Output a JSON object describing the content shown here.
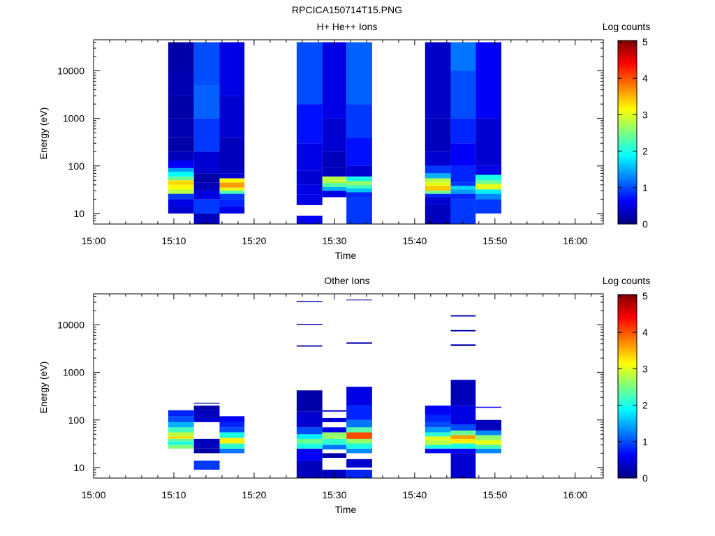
{
  "figure": {
    "title": "RPCICA150714T15.PNG"
  },
  "colors": {
    "background": "#ffffff",
    "axis": "#000000",
    "colormap": [
      "#00007f",
      "#0000ff",
      "#007fff",
      "#00ffff",
      "#7fff7f",
      "#ffff00",
      "#ff7f00",
      "#ff0000",
      "#7f0000"
    ]
  },
  "chart_data": [
    {
      "type": "heatmap",
      "title": "H+ He++ Ions",
      "xlabel": "Time",
      "ylabel": "Energy (eV)",
      "x_ticks": [
        "15:00",
        "15:10",
        "15:20",
        "15:30",
        "15:40",
        "15:50",
        "16:00"
      ],
      "x_range_minutes": [
        0,
        63.5
      ],
      "y_scale": "log",
      "y_range": [
        6,
        45000
      ],
      "y_ticks": [
        "10",
        "100",
        "1000",
        "10000"
      ],
      "colorbar": {
        "label": "Log counts",
        "range": [
          0,
          5
        ],
        "ticks": [
          "0",
          "1",
          "2",
          "3",
          "4",
          "5"
        ]
      },
      "columns": [
        {
          "t0": 9.3,
          "t1": 12.5,
          "emin": 10,
          "emax": 40000,
          "bands": [
            [
              10,
              14,
              0.4
            ],
            [
              14,
              20,
              0.5
            ],
            [
              20,
              26,
              0.9
            ],
            [
              26,
              32,
              2.8
            ],
            [
              32,
              40,
              3.1
            ],
            [
              40,
              50,
              3.3
            ],
            [
              50,
              60,
              2.4
            ],
            [
              60,
              75,
              1.9
            ],
            [
              75,
              90,
              1.4
            ],
            [
              90,
              130,
              0.6
            ],
            [
              130,
              200,
              0.3
            ],
            [
              200,
              400,
              0.2
            ],
            [
              400,
              1000,
              0.25
            ],
            [
              1000,
              3000,
              0.2
            ],
            [
              3000,
              10000,
              0.25
            ],
            [
              10000,
              40000,
              0.2
            ]
          ]
        },
        {
          "t0": 12.5,
          "t1": 15.7,
          "emin": 6,
          "emax": 40000,
          "bands": [
            [
              6,
              10,
              0.3
            ],
            [
              10,
              20,
              0.9
            ],
            [
              20,
              30,
              0.5
            ],
            [
              30,
              45,
              0.3
            ],
            [
              45,
              70,
              0.2
            ],
            [
              70,
              200,
              0.4
            ],
            [
              200,
              1000,
              0.9
            ],
            [
              1000,
              5000,
              1.1
            ],
            [
              5000,
              40000,
              1.0
            ]
          ]
        },
        {
          "t0": 15.7,
          "t1": 18.8,
          "emin": 10,
          "emax": 40000,
          "bands": [
            [
              10,
              14,
              0.5
            ],
            [
              14,
              20,
              0.8
            ],
            [
              20,
              26,
              0.9
            ],
            [
              26,
              30,
              2.2
            ],
            [
              30,
              35,
              3.0
            ],
            [
              35,
              45,
              3.6
            ],
            [
              45,
              55,
              3.1
            ],
            [
              55,
              70,
              0.4
            ],
            [
              70,
              400,
              0.3
            ],
            [
              400,
              3000,
              0.4
            ],
            [
              3000,
              40000,
              0.5
            ]
          ]
        },
        {
          "t0": 25.3,
          "t1": 28.5,
          "emin": 6,
          "emax": 40000,
          "bands": [
            [
              6,
              9,
              0.6
            ],
            [
              15,
              25,
              0.5
            ],
            [
              25,
              40,
              0.5
            ],
            [
              40,
              80,
              0.4
            ],
            [
              80,
              300,
              0.5
            ],
            [
              300,
              2000,
              0.7
            ],
            [
              2000,
              40000,
              1.0
            ]
          ]
        },
        {
          "t0": 28.5,
          "t1": 31.5,
          "emin": 22,
          "emax": 40000,
          "bands": [
            [
              22,
              30,
              0.5
            ],
            [
              30,
              36,
              1.5
            ],
            [
              36,
              44,
              2.3
            ],
            [
              44,
              60,
              2.8
            ],
            [
              60,
              90,
              0.3
            ],
            [
              90,
              200,
              0.3
            ],
            [
              200,
              1000,
              0.4
            ],
            [
              1000,
              40000,
              0.5
            ]
          ]
        },
        {
          "t0": 31.5,
          "t1": 34.7,
          "emin": 6,
          "emax": 40000,
          "bands": [
            [
              6,
              22,
              0.9
            ],
            [
              22,
              28,
              0.8
            ],
            [
              28,
              34,
              1.6
            ],
            [
              34,
              40,
              2.2
            ],
            [
              40,
              48,
              2.6
            ],
            [
              48,
              60,
              2.0
            ],
            [
              60,
              100,
              0.4
            ],
            [
              100,
              400,
              0.7
            ],
            [
              400,
              2000,
              0.9
            ],
            [
              2000,
              40000,
              1.1
            ]
          ]
        },
        {
          "t0": 41.3,
          "t1": 44.5,
          "emin": 6,
          "emax": 40000,
          "bands": [
            [
              6,
              15,
              0.3
            ],
            [
              15,
              22,
              0.4
            ],
            [
              22,
              26,
              0.8
            ],
            [
              26,
              30,
              2.4
            ],
            [
              30,
              38,
              3.4
            ],
            [
              38,
              45,
              3.0
            ],
            [
              45,
              55,
              2.8
            ],
            [
              55,
              70,
              1.5
            ],
            [
              70,
              100,
              0.9
            ],
            [
              100,
              200,
              0.4
            ],
            [
              200,
              1000,
              0.3
            ],
            [
              1000,
              40000,
              0.35
            ]
          ]
        },
        {
          "t0": 44.5,
          "t1": 47.6,
          "emin": 6,
          "emax": 40000,
          "bands": [
            [
              6,
              20,
              0.9
            ],
            [
              20,
              26,
              0.8
            ],
            [
              26,
              32,
              1.4
            ],
            [
              32,
              38,
              1.7
            ],
            [
              38,
              45,
              0.9
            ],
            [
              45,
              100,
              0.8
            ],
            [
              100,
              300,
              0.6
            ],
            [
              300,
              1000,
              0.8
            ],
            [
              1000,
              10000,
              1.0
            ],
            [
              10000,
              40000,
              1.2
            ]
          ]
        },
        {
          "t0": 47.6,
          "t1": 50.8,
          "emin": 10,
          "emax": 40000,
          "bands": [
            [
              10,
              20,
              0.9
            ],
            [
              20,
              26,
              1.3
            ],
            [
              26,
              32,
              1.8
            ],
            [
              32,
              42,
              3.0
            ],
            [
              42,
              50,
              2.4
            ],
            [
              50,
              65,
              2.0
            ],
            [
              65,
              100,
              0.5
            ],
            [
              100,
              1000,
              0.4
            ],
            [
              1000,
              40000,
              0.6
            ]
          ]
        }
      ]
    },
    {
      "type": "heatmap",
      "title": "Other Ions",
      "xlabel": "Time",
      "ylabel": "Energy (eV)",
      "x_ticks": [
        "15:00",
        "15:10",
        "15:20",
        "15:30",
        "15:40",
        "15:50",
        "16:00"
      ],
      "x_range_minutes": [
        0,
        63.5
      ],
      "y_scale": "log",
      "y_range": [
        6,
        45000
      ],
      "y_ticks": [
        "10",
        "100",
        "1000",
        "10000"
      ],
      "colorbar": {
        "label": "Log counts",
        "range": [
          0,
          5
        ],
        "ticks": [
          "0",
          "1",
          "2",
          "3",
          "4",
          "5"
        ]
      },
      "columns": [
        {
          "t0": 9.3,
          "t1": 12.5,
          "emin": 25,
          "emax": 160,
          "bands": [
            [
              25,
              30,
              2.5
            ],
            [
              30,
              35,
              2.0
            ],
            [
              35,
              40,
              2.3
            ],
            [
              40,
              45,
              3.3
            ],
            [
              45,
              55,
              2.8
            ],
            [
              55,
              70,
              2.2
            ],
            [
              70,
              90,
              1.5
            ],
            [
              90,
              120,
              1.0
            ],
            [
              120,
              160,
              0.8
            ]
          ]
        },
        {
          "t0": 12.5,
          "t1": 15.7,
          "emin": 9,
          "emax": 230,
          "bands": [
            [
              9,
              14,
              0.9
            ],
            [
              20,
              25,
              0.2
            ],
            [
              25,
              40,
              0.3
            ],
            [
              90,
              110,
              0.4
            ],
            [
              110,
              160,
              0.3
            ],
            [
              160,
              200,
              0.2
            ],
            [
              220,
              230,
              0.2
            ]
          ]
        },
        {
          "t0": 15.7,
          "t1": 18.8,
          "emin": 20,
          "emax": 120,
          "bands": [
            [
              20,
              25,
              1.2
            ],
            [
              25,
              32,
              2.1
            ],
            [
              32,
              42,
              3.2
            ],
            [
              42,
              55,
              2.0
            ],
            [
              55,
              70,
              1.0
            ],
            [
              70,
              90,
              0.8
            ],
            [
              90,
              120,
              0.6
            ]
          ]
        },
        {
          "t0": 25.3,
          "t1": 28.5,
          "emin": 6,
          "emax": 32000,
          "bands": [
            [
              6,
              14,
              0.3
            ],
            [
              14,
              25,
              0.6
            ],
            [
              25,
              32,
              2.0
            ],
            [
              32,
              40,
              2.4
            ],
            [
              40,
              50,
              1.8
            ],
            [
              50,
              70,
              1.0
            ],
            [
              70,
              150,
              0.4
            ],
            [
              150,
              420,
              0.2
            ],
            [
              3500,
              3700,
              0.2
            ],
            [
              10000,
              10500,
              0.2
            ],
            [
              30000,
              31500,
              0.2
            ]
          ]
        },
        {
          "t0": 28.5,
          "t1": 31.5,
          "emin": 6,
          "emax": 160,
          "bands": [
            [
              6,
              9,
              0.3
            ],
            [
              16,
              20,
              0.2
            ],
            [
              24,
              30,
              1.2
            ],
            [
              30,
              40,
              2.1
            ],
            [
              40,
              55,
              2.6
            ],
            [
              55,
              70,
              0.5
            ],
            [
              90,
              110,
              0.4
            ],
            [
              150,
              160,
              0.3
            ]
          ]
        },
        {
          "t0": 31.5,
          "t1": 34.7,
          "emin": 6,
          "emax": 34000,
          "bands": [
            [
              6,
              9,
              0.8
            ],
            [
              10,
              15,
              0.4
            ],
            [
              20,
              25,
              1.3
            ],
            [
              25,
              32,
              2.0
            ],
            [
              32,
              40,
              2.6
            ],
            [
              40,
              55,
              4.0
            ],
            [
              55,
              70,
              2.3
            ],
            [
              70,
              100,
              1.2
            ],
            [
              100,
              200,
              0.8
            ],
            [
              200,
              500,
              0.5
            ],
            [
              4000,
              4300,
              0.2
            ],
            [
              33000,
              34000,
              0.2
            ]
          ]
        },
        {
          "t0": 41.3,
          "t1": 44.5,
          "emin": 20,
          "emax": 200,
          "bands": [
            [
              20,
              25,
              0.6
            ],
            [
              25,
              30,
              2.0
            ],
            [
              30,
              38,
              2.8
            ],
            [
              38,
              45,
              3.0
            ],
            [
              45,
              55,
              2.1
            ],
            [
              55,
              70,
              1.4
            ],
            [
              70,
              90,
              1.0
            ],
            [
              90,
              130,
              0.8
            ],
            [
              130,
              200,
              0.6
            ]
          ]
        },
        {
          "t0": 44.5,
          "t1": 47.6,
          "emin": 6,
          "emax": 16000,
          "bands": [
            [
              6,
              20,
              0.4
            ],
            [
              20,
              25,
              0.6
            ],
            [
              25,
              32,
              2.0
            ],
            [
              32,
              40,
              3.2
            ],
            [
              40,
              48,
              3.6
            ],
            [
              48,
              60,
              2.4
            ],
            [
              60,
              80,
              1.0
            ],
            [
              80,
              200,
              0.5
            ],
            [
              200,
              700,
              0.3
            ],
            [
              3600,
              3900,
              0.2
            ],
            [
              7300,
              7800,
              0.2
            ],
            [
              15000,
              16000,
              0.2
            ]
          ]
        },
        {
          "t0": 47.6,
          "t1": 50.8,
          "emin": 20,
          "emax": 190,
          "bands": [
            [
              20,
              25,
              1.3
            ],
            [
              25,
              30,
              2.2
            ],
            [
              30,
              38,
              3.0
            ],
            [
              38,
              48,
              2.6
            ],
            [
              48,
              60,
              1.3
            ],
            [
              60,
              100,
              0.3
            ],
            [
              180,
              190,
              0.6
            ]
          ]
        }
      ]
    }
  ]
}
